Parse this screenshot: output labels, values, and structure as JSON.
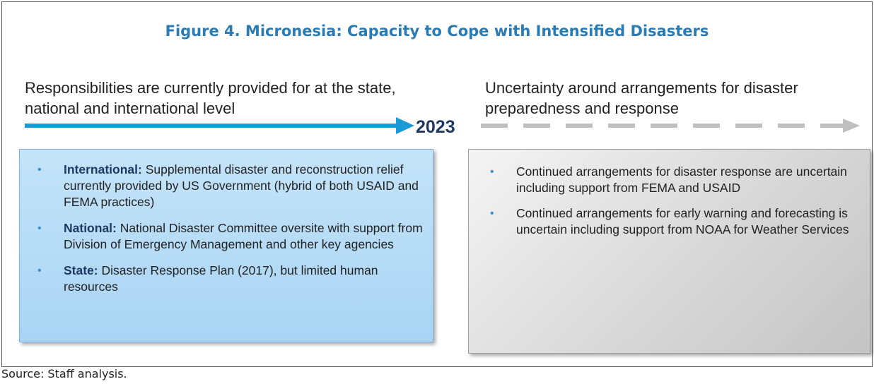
{
  "title": "Figure 4. Micronesia: Capacity to Cope with Intensified Disasters",
  "left": {
    "heading": "Responsibilities are currently provided for at the state, national and international level",
    "bullets": [
      {
        "label": "International:",
        "text": "Supplemental disaster and reconstruction relief currently provided by US Government (hybrid of both USAID and FEMA practices)"
      },
      {
        "label": "National:",
        "text": "National Disaster Committee oversite with support from Division of Emergency Management and other key agencies"
      },
      {
        "label": "State:",
        "text": "Disaster Response Plan (2017), but limited human resources"
      }
    ]
  },
  "year": "2023",
  "right": {
    "heading": "Uncertainty around arrangements for disaster preparedness and response",
    "bullets": [
      "Continued arrangements for disaster response are uncertain including support from FEMA and USAID",
      "Continued arrangements for early warning and forecasting is uncertain including support from NOAA for Weather Services"
    ]
  },
  "source": "Source: Staff analysis."
}
